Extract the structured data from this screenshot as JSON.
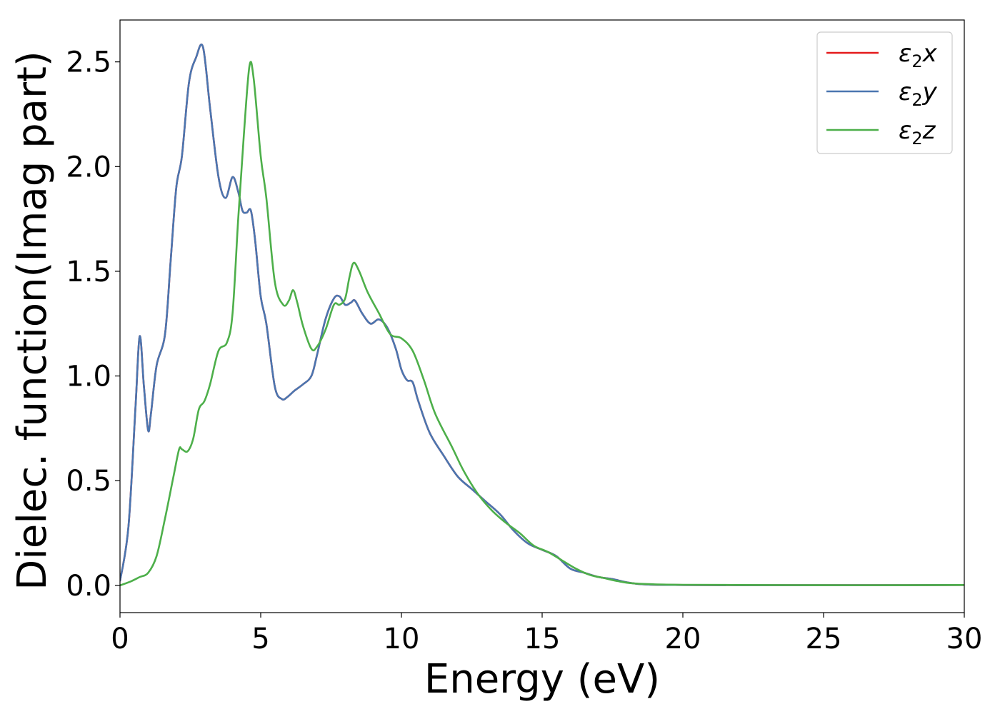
{
  "chart_data": {
    "type": "line",
    "xlabel": "Energy (eV)",
    "ylabel": "Dielec. function(Imag part)",
    "xlim": [
      0,
      30
    ],
    "ylim": [
      -0.13,
      2.7
    ],
    "xticks": [
      0,
      5,
      10,
      15,
      20,
      25,
      30
    ],
    "xtick_labels": [
      "0",
      "5",
      "10",
      "15",
      "20",
      "25",
      "30"
    ],
    "yticks": [
      0.0,
      0.5,
      1.0,
      1.5,
      2.0,
      2.5
    ],
    "ytick_labels": [
      "0.0",
      "0.5",
      "1.0",
      "1.5",
      "2.0",
      "2.5"
    ],
    "grid": false,
    "legend_position": "top-right",
    "series": [
      {
        "name": "ε₂x",
        "legend_base": "ε",
        "legend_sub": "2",
        "legend_var": "x",
        "color": "#e41a1c",
        "x": [
          0,
          0.3,
          0.55,
          0.7,
          0.85,
          1.0,
          1.1,
          1.3,
          1.6,
          1.8,
          2.0,
          2.2,
          2.45,
          2.7,
          2.95,
          3.2,
          3.5,
          3.75,
          4.0,
          4.2,
          4.35,
          4.5,
          4.65,
          4.8,
          5.0,
          5.2,
          5.5,
          5.75,
          5.95,
          6.2,
          6.5,
          6.8,
          7.0,
          7.3,
          7.6,
          7.8,
          8.0,
          8.2,
          8.35,
          8.6,
          8.9,
          9.2,
          9.5,
          9.8,
          10.0,
          10.2,
          10.4,
          10.6,
          11.0,
          11.5,
          12.0,
          12.5,
          13.0,
          13.5,
          14.0,
          14.5,
          15.0,
          15.5,
          16.0,
          16.5,
          17.0,
          17.5,
          18.0,
          18.5,
          19.0,
          20.0,
          22.0,
          25.0,
          28.0,
          30.0
        ],
        "y": [
          0.02,
          0.28,
          0.85,
          1.19,
          0.95,
          0.74,
          0.82,
          1.05,
          1.2,
          1.55,
          1.9,
          2.05,
          2.4,
          2.52,
          2.57,
          2.28,
          1.95,
          1.85,
          1.95,
          1.88,
          1.79,
          1.78,
          1.79,
          1.65,
          1.38,
          1.25,
          0.95,
          0.89,
          0.9,
          0.93,
          0.96,
          1.0,
          1.1,
          1.27,
          1.37,
          1.38,
          1.34,
          1.35,
          1.36,
          1.3,
          1.25,
          1.27,
          1.23,
          1.13,
          1.03,
          0.98,
          0.97,
          0.88,
          0.73,
          0.62,
          0.52,
          0.46,
          0.4,
          0.34,
          0.26,
          0.2,
          0.17,
          0.14,
          0.08,
          0.06,
          0.04,
          0.03,
          0.015,
          0.006,
          0.003,
          0.002,
          0.001,
          0.001,
          0.001,
          0.002
        ]
      },
      {
        "name": "ε₂y",
        "legend_base": "ε",
        "legend_sub": "2",
        "legend_var": "y",
        "color": "#4a76b0",
        "x": [
          0,
          0.3,
          0.55,
          0.7,
          0.85,
          1.0,
          1.1,
          1.3,
          1.6,
          1.8,
          2.0,
          2.2,
          2.45,
          2.7,
          2.95,
          3.2,
          3.5,
          3.75,
          4.0,
          4.2,
          4.35,
          4.5,
          4.65,
          4.8,
          5.0,
          5.2,
          5.5,
          5.75,
          5.95,
          6.2,
          6.5,
          6.8,
          7.0,
          7.3,
          7.6,
          7.8,
          8.0,
          8.2,
          8.35,
          8.6,
          8.9,
          9.2,
          9.5,
          9.8,
          10.0,
          10.2,
          10.4,
          10.6,
          11.0,
          11.5,
          12.0,
          12.5,
          13.0,
          13.5,
          14.0,
          14.5,
          15.0,
          15.5,
          16.0,
          16.5,
          17.0,
          17.5,
          18.0,
          18.5,
          19.0,
          20.0,
          22.0,
          25.0,
          28.0,
          30.0
        ],
        "y": [
          0.02,
          0.28,
          0.85,
          1.19,
          0.95,
          0.74,
          0.82,
          1.05,
          1.2,
          1.55,
          1.9,
          2.05,
          2.4,
          2.52,
          2.57,
          2.28,
          1.95,
          1.85,
          1.95,
          1.88,
          1.79,
          1.78,
          1.79,
          1.65,
          1.38,
          1.25,
          0.95,
          0.89,
          0.9,
          0.93,
          0.96,
          1.0,
          1.1,
          1.27,
          1.37,
          1.38,
          1.34,
          1.35,
          1.36,
          1.3,
          1.25,
          1.27,
          1.23,
          1.13,
          1.03,
          0.98,
          0.97,
          0.88,
          0.73,
          0.62,
          0.52,
          0.46,
          0.4,
          0.34,
          0.26,
          0.2,
          0.17,
          0.14,
          0.08,
          0.06,
          0.04,
          0.03,
          0.015,
          0.006,
          0.003,
          0.002,
          0.001,
          0.001,
          0.001,
          0.002
        ]
      },
      {
        "name": "ε₂z",
        "legend_base": "ε",
        "legend_sub": "2",
        "legend_var": "z",
        "color": "#4daf4a",
        "x": [
          0,
          0.4,
          0.7,
          1.0,
          1.3,
          1.6,
          1.9,
          2.1,
          2.2,
          2.4,
          2.6,
          2.8,
          3.0,
          3.2,
          3.5,
          3.8,
          4.0,
          4.2,
          4.4,
          4.6,
          4.75,
          5.0,
          5.2,
          5.5,
          5.8,
          6.0,
          6.15,
          6.3,
          6.5,
          6.8,
          7.0,
          7.3,
          7.6,
          7.8,
          8.0,
          8.15,
          8.3,
          8.5,
          8.8,
          9.2,
          9.6,
          10.0,
          10.4,
          10.8,
          11.2,
          11.8,
          12.2,
          12.7,
          13.2,
          13.7,
          14.2,
          14.7,
          15.2,
          15.7,
          16.2,
          16.7,
          17.2,
          17.7,
          18.2,
          19.0,
          20.0,
          22.0,
          25.0,
          28.0,
          30.0
        ],
        "y": [
          0.0,
          0.02,
          0.04,
          0.06,
          0.14,
          0.32,
          0.52,
          0.65,
          0.65,
          0.64,
          0.7,
          0.84,
          0.88,
          0.96,
          1.12,
          1.16,
          1.3,
          1.75,
          2.15,
          2.48,
          2.42,
          2.05,
          1.85,
          1.45,
          1.34,
          1.36,
          1.41,
          1.35,
          1.24,
          1.13,
          1.14,
          1.22,
          1.34,
          1.34,
          1.37,
          1.47,
          1.54,
          1.5,
          1.4,
          1.3,
          1.2,
          1.18,
          1.12,
          0.98,
          0.82,
          0.66,
          0.55,
          0.44,
          0.36,
          0.3,
          0.25,
          0.19,
          0.16,
          0.12,
          0.08,
          0.05,
          0.035,
          0.02,
          0.01,
          0.005,
          0.003,
          0.002,
          0.001,
          0.001,
          0.002
        ]
      }
    ]
  }
}
